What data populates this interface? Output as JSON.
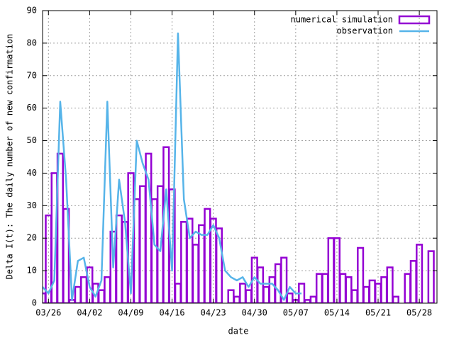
{
  "chart_data": {
    "type": "bar_line",
    "xlabel": "date",
    "ylabel": "Delta I(t): The daily number of new confirmation",
    "x": [
      "03/25",
      "03/26",
      "03/27",
      "03/28",
      "03/29",
      "03/30",
      "03/31",
      "04/01",
      "04/02",
      "04/03",
      "04/04",
      "04/05",
      "04/06",
      "04/07",
      "04/08",
      "04/09",
      "04/10",
      "04/11",
      "04/12",
      "04/13",
      "04/14",
      "04/15",
      "04/16",
      "04/17",
      "04/18",
      "04/19",
      "04/20",
      "04/21",
      "04/22",
      "04/23",
      "04/24",
      "04/25",
      "04/26",
      "04/27",
      "04/28",
      "04/29",
      "04/30",
      "05/01",
      "05/02",
      "05/03",
      "05/04",
      "05/05",
      "05/06",
      "05/07",
      "05/08",
      "05/09",
      "05/10",
      "05/11",
      "05/12",
      "05/13",
      "05/14",
      "05/15",
      "05/16",
      "05/17",
      "05/18",
      "05/19",
      "05/20",
      "05/21",
      "05/22",
      "05/23",
      "05/24",
      "05/25",
      "05/26",
      "05/27",
      "05/28",
      "05/29",
      "05/30"
    ],
    "series": [
      {
        "name": "numerical simulation",
        "type": "bar",
        "color": "#9400d3",
        "values": [
          3,
          27,
          40,
          46,
          29,
          1,
          5,
          8,
          11,
          6,
          4,
          8,
          22,
          27,
          25,
          40,
          32,
          36,
          46,
          32,
          36,
          48,
          35,
          6,
          25,
          26,
          18,
          24,
          29,
          26,
          23,
          0,
          4,
          2,
          6,
          4,
          14,
          11,
          5,
          8,
          12,
          14,
          3,
          1,
          6,
          1,
          2,
          9,
          9,
          20,
          20,
          9,
          8,
          4,
          17,
          5,
          7,
          6,
          8,
          11,
          2,
          0,
          9,
          13,
          18,
          0,
          16
        ]
      },
      {
        "name": "observation",
        "type": "line",
        "color": "#56b4e9",
        "values": [
          5,
          3,
          7,
          62,
          38,
          1,
          13,
          14,
          5,
          2,
          7,
          62,
          11,
          38,
          25,
          3,
          50,
          43,
          38,
          18,
          16,
          35,
          10,
          83,
          32,
          20,
          22,
          21,
          21,
          24,
          20,
          10,
          8,
          7,
          8,
          5,
          8,
          6,
          6,
          6,
          4,
          1,
          5,
          3,
          3,
          null,
          null,
          null,
          null,
          null,
          null,
          null,
          null,
          null,
          null,
          null,
          null,
          null,
          null,
          null,
          null,
          null,
          null,
          null,
          null,
          null,
          null
        ]
      }
    ],
    "xlim": [
      "03/25",
      "05/31"
    ],
    "xticks": [
      "03/26",
      "04/02",
      "04/09",
      "04/16",
      "04/23",
      "04/30",
      "05/07",
      "05/14",
      "05/21",
      "05/28"
    ],
    "ylim": [
      0,
      90
    ],
    "yticks": [
      0,
      10,
      20,
      30,
      40,
      50,
      60,
      70,
      80,
      90
    ],
    "grid": true,
    "legend": "top-right"
  }
}
